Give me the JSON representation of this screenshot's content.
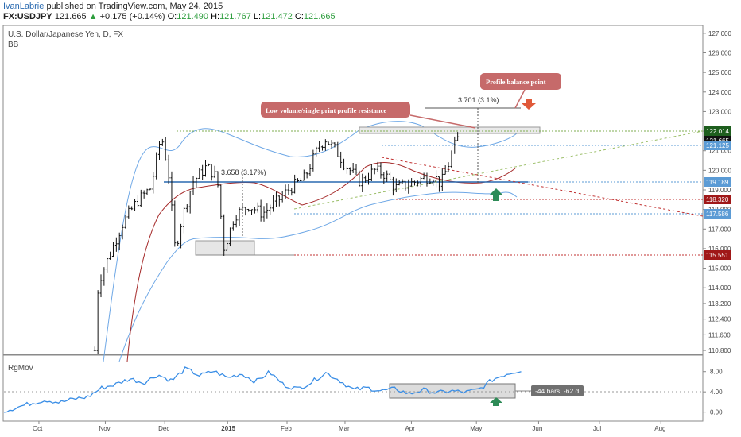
{
  "header": {
    "author": "IvanLabrie",
    "published": "published on TradingView.com, May 24, 2015",
    "symbol": "FX:USDJPY",
    "last": "121.665",
    "change": "+0.175 (+0.14%)",
    "open_tag": "O:",
    "open": "121.490",
    "high_tag": "H:",
    "high": "121.767",
    "low_tag": "L:",
    "low": "121.472",
    "close_tag": "C:",
    "close": "121.665"
  },
  "chart_data": [
    {
      "type": "candlestick",
      "title": "U.S. Dollar/Japanese Yen, D, FX",
      "indicator": "BB",
      "x_ticks": [
        "Oct",
        "Nov",
        "Dec",
        "2015",
        "Feb",
        "Mar",
        "Apr",
        "May",
        "Jun",
        "Jul",
        "Aug"
      ],
      "y_ticks": [
        "127.000",
        "126.000",
        "125.000",
        "124.000",
        "123.000",
        "122.000",
        "121.000",
        "120.000",
        "119.000",
        "118.000",
        "117.000",
        "116.000",
        "115.000",
        "114.000",
        "113.200",
        "112.400",
        "111.600",
        "110.800"
      ],
      "ylim": [
        110.6,
        127.4
      ],
      "price_labels": [
        {
          "value": "122.014",
          "color": "#1e5e1e"
        },
        {
          "value": "121.665",
          "color": "#111111"
        },
        {
          "value": "121.125",
          "color": "#5b9bd5"
        },
        {
          "value": "119.189",
          "color": "#5b9bd5"
        },
        {
          "value": "118.320",
          "color": "#a01818"
        },
        {
          "value": "117.586",
          "color": "#5b9bd5"
        },
        {
          "value": "115.551",
          "color": "#a01818"
        }
      ],
      "annotations": {
        "callout_resistance": "Low volume/single print profile resistance",
        "callout_balance": "Profile balance point",
        "measure_top": "3.701 (3.1%)",
        "measure_left": "3.658 (3.17%)"
      },
      "path": [
        {
          "x": 0.13,
          "y": 110.8
        },
        {
          "x": 0.135,
          "y": 114.3
        },
        {
          "x": 0.15,
          "y": 115.6
        },
        {
          "x": 0.17,
          "y": 117.3
        },
        {
          "x": 0.19,
          "y": 118.4
        },
        {
          "x": 0.21,
          "y": 119.1
        },
        {
          "x": 0.225,
          "y": 121.8
        },
        {
          "x": 0.235,
          "y": 120.0
        },
        {
          "x": 0.245,
          "y": 115.9
        },
        {
          "x": 0.255,
          "y": 117.6
        },
        {
          "x": 0.27,
          "y": 119.4
        },
        {
          "x": 0.29,
          "y": 120.2
        },
        {
          "x": 0.305,
          "y": 119.6
        },
        {
          "x": 0.315,
          "y": 116.0
        },
        {
          "x": 0.33,
          "y": 117.7
        },
        {
          "x": 0.35,
          "y": 118.2
        },
        {
          "x": 0.37,
          "y": 117.8
        },
        {
          "x": 0.39,
          "y": 118.4
        },
        {
          "x": 0.41,
          "y": 119.1
        },
        {
          "x": 0.43,
          "y": 119.6
        },
        {
          "x": 0.45,
          "y": 121.2
        },
        {
          "x": 0.46,
          "y": 121.6
        },
        {
          "x": 0.475,
          "y": 121.0
        },
        {
          "x": 0.49,
          "y": 120.2
        },
        {
          "x": 0.51,
          "y": 119.4
        },
        {
          "x": 0.53,
          "y": 120.0
        },
        {
          "x": 0.545,
          "y": 119.8
        },
        {
          "x": 0.56,
          "y": 119.1
        },
        {
          "x": 0.58,
          "y": 119.3
        },
        {
          "x": 0.6,
          "y": 119.6
        },
        {
          "x": 0.615,
          "y": 119.7
        },
        {
          "x": 0.625,
          "y": 119.3
        },
        {
          "x": 0.635,
          "y": 120.2
        },
        {
          "x": 0.643,
          "y": 121.1
        },
        {
          "x": 0.65,
          "y": 121.665
        }
      ]
    },
    {
      "type": "line",
      "title": "RgMov",
      "y_ticks": [
        "8.00",
        "4.00",
        "0.00"
      ],
      "ylim": [
        -1,
        10
      ],
      "range_label": "-44 bars, -62 d",
      "series": [
        {
          "values": [
            {
              "x": 0.0,
              "y": 0.2
            },
            {
              "x": 0.02,
              "y": 1.0
            },
            {
              "x": 0.04,
              "y": 1.8
            },
            {
              "x": 0.06,
              "y": 2.4
            },
            {
              "x": 0.08,
              "y": 1.9
            },
            {
              "x": 0.1,
              "y": 2.6
            },
            {
              "x": 0.12,
              "y": 3.0
            },
            {
              "x": 0.14,
              "y": 4.8
            },
            {
              "x": 0.16,
              "y": 5.5
            },
            {
              "x": 0.18,
              "y": 6.6
            },
            {
              "x": 0.2,
              "y": 5.8
            },
            {
              "x": 0.22,
              "y": 7.4
            },
            {
              "x": 0.24,
              "y": 6.2
            },
            {
              "x": 0.26,
              "y": 8.6
            },
            {
              "x": 0.28,
              "y": 7.2
            },
            {
              "x": 0.3,
              "y": 8.1
            },
            {
              "x": 0.32,
              "y": 6.8
            },
            {
              "x": 0.34,
              "y": 7.6
            },
            {
              "x": 0.36,
              "y": 6.0
            },
            {
              "x": 0.38,
              "y": 7.9
            },
            {
              "x": 0.4,
              "y": 5.4
            },
            {
              "x": 0.42,
              "y": 4.6
            },
            {
              "x": 0.44,
              "y": 5.9
            },
            {
              "x": 0.46,
              "y": 7.8
            },
            {
              "x": 0.48,
              "y": 6.3
            },
            {
              "x": 0.5,
              "y": 4.4
            },
            {
              "x": 0.52,
              "y": 4.8
            },
            {
              "x": 0.54,
              "y": 4.2
            },
            {
              "x": 0.56,
              "y": 4.6
            },
            {
              "x": 0.58,
              "y": 3.6
            },
            {
              "x": 0.6,
              "y": 4.4
            },
            {
              "x": 0.62,
              "y": 3.8
            },
            {
              "x": 0.64,
              "y": 4.2
            },
            {
              "x": 0.66,
              "y": 3.9
            },
            {
              "x": 0.68,
              "y": 4.5
            },
            {
              "x": 0.7,
              "y": 6.5
            },
            {
              "x": 0.72,
              "y": 7.6
            },
            {
              "x": 0.74,
              "y": 8.3
            }
          ],
          "color": "#3a8ee6"
        }
      ]
    }
  ],
  "colors": {
    "bb": "#6fa8e6",
    "ma": "#a52a2a",
    "callout": "#c66a6a",
    "arrow_up": "#2e8b57",
    "arrow_down": "#e05a3a",
    "rgmov": "#3a8ee6"
  }
}
